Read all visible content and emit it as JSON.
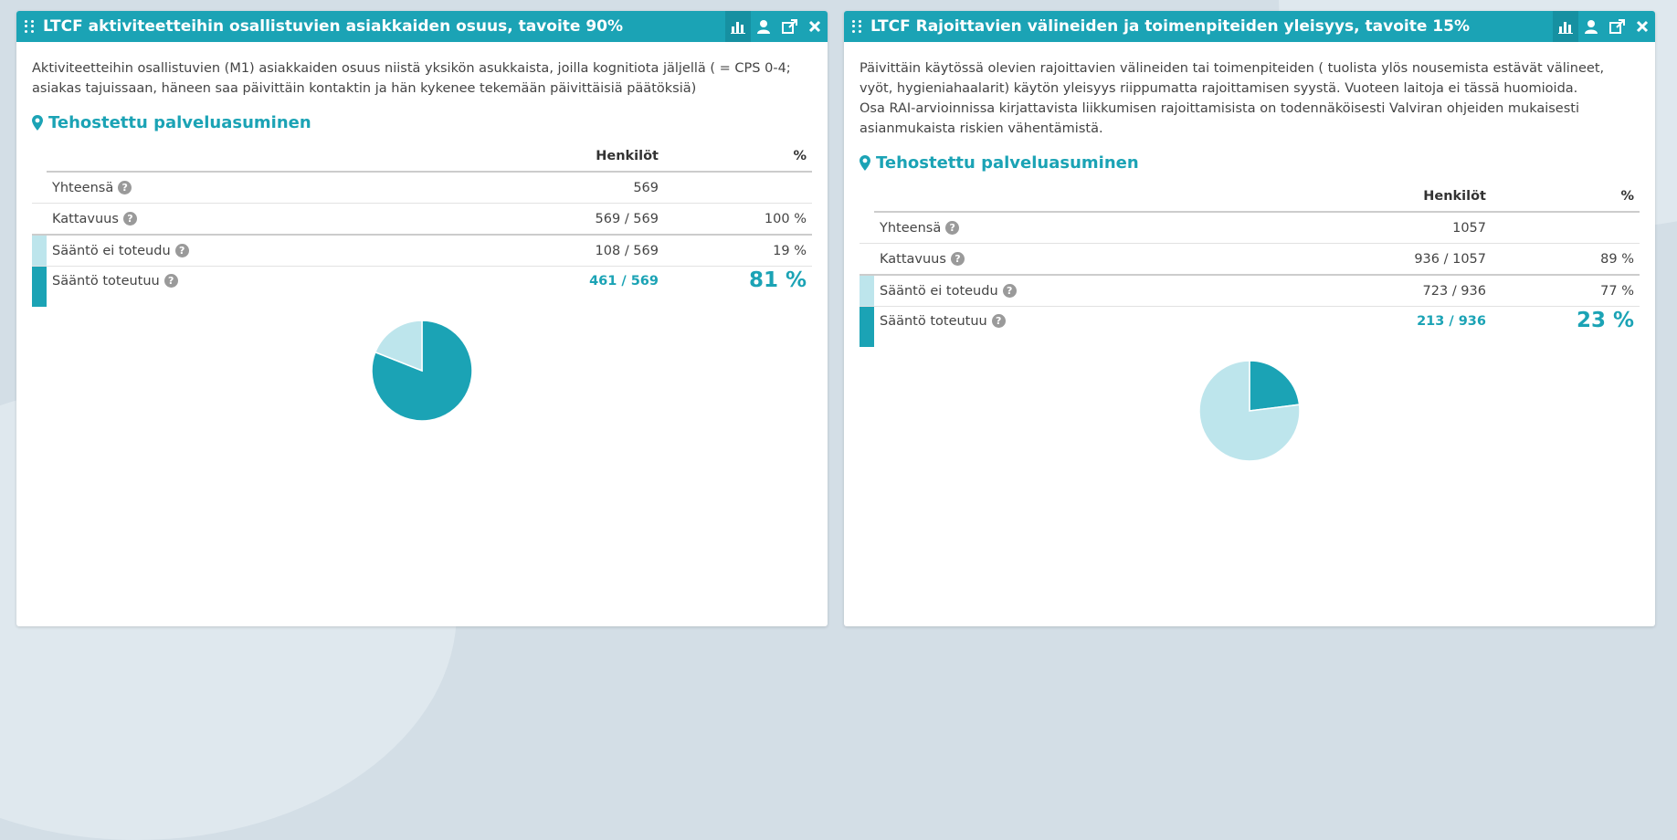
{
  "colors": {
    "header": "#1ba3b5",
    "accent": "#1ba3b5",
    "light": "#bde5ec",
    "met": "#1ba3b5",
    "notmet": "#bde5ec"
  },
  "icons": [
    "drag-handle-icon",
    "bar-chart-icon",
    "person-icon",
    "share-icon",
    "close-icon",
    "map-marker-icon",
    "help-icon"
  ],
  "panels": [
    {
      "title": "LTCF aktiviteetteihin osallistuvien asiakkaiden osuus, tavoite 90%",
      "description": "Aktiviteetteihin osallistuvien (M1) asiakkaiden osuus niistä yksikön asukkaista, joilla kognitiota jäljellä ( = CPS 0-4; asiakas tajuissaan, häneen saa päivittäin kontaktin ja hän kykenee tekemään päivittäisiä päätöksiä)",
      "section": "Tehostettu palveluasuminen",
      "col_persons": "Henkilöt",
      "col_pct": "%",
      "rows": {
        "total": {
          "label": "Yhteensä",
          "persons": "569",
          "pct": ""
        },
        "coverage": {
          "label": "Kattavuus",
          "persons": "569 / 569",
          "pct": "100 %"
        },
        "notmet": {
          "label": "Sääntö ei toteudu",
          "persons": "108 / 569",
          "pct": "19 %"
        },
        "met": {
          "label": "Sääntö toteutuu",
          "persons": "461 / 569",
          "pct": "81 %"
        }
      },
      "chart_data": {
        "type": "pie",
        "labels": [
          "Sääntö toteutuu",
          "Sääntö ei toteudu"
        ],
        "values": [
          81,
          19
        ]
      }
    },
    {
      "title": "LTCF Rajoittavien välineiden ja toimenpiteiden yleisyys, tavoite 15%",
      "description": "Päivittäin käytössä olevien rajoittavien välineiden tai toimenpiteiden ( tuolista ylös nousemista estävät välineet, vyöt, hygieniahaalarit) käytön yleisyys riippumatta rajoittamisen syystä. Vuoteen laitoja ei tässä huomioida.",
      "description2": "Osa RAI-arvioinnissa kirjattavista liikkumisen rajoittamisista on todennäköisesti Valviran ohjeiden mukaisesti asianmukaista riskien vähentämistä.",
      "section": "Tehostettu palveluasuminen",
      "col_persons": "Henkilöt",
      "col_pct": "%",
      "rows": {
        "total": {
          "label": "Yhteensä",
          "persons": "1057",
          "pct": ""
        },
        "coverage": {
          "label": "Kattavuus",
          "persons": "936 / 1057",
          "pct": "89 %"
        },
        "notmet": {
          "label": "Sääntö ei toteudu",
          "persons": "723 / 936",
          "pct": "77 %"
        },
        "met": {
          "label": "Sääntö toteutuu",
          "persons": "213 / 936",
          "pct": "23 %"
        }
      },
      "chart_data": {
        "type": "pie",
        "labels": [
          "Sääntö toteutuu",
          "Sääntö ei toteudu"
        ],
        "values": [
          23,
          77
        ]
      }
    }
  ]
}
